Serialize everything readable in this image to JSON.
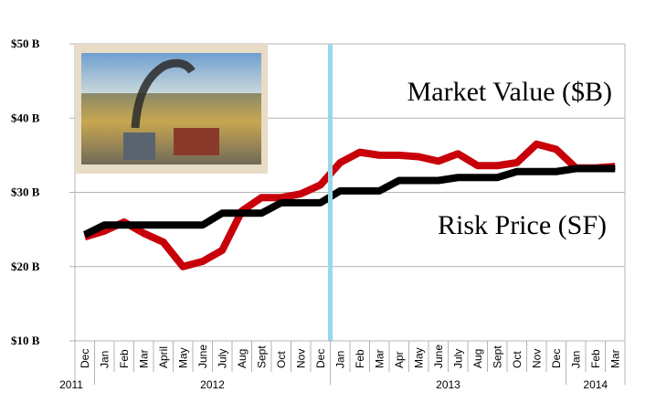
{
  "chart_data": {
    "type": "line",
    "title": "",
    "xlabel": "",
    "ylabel": "",
    "ylim": [
      10,
      50
    ],
    "y_ticks": [
      "$10 B",
      "$20 B",
      "$30 B",
      "$40 B",
      "$50 B"
    ],
    "y_tick_values": [
      10,
      20,
      30,
      40,
      50
    ],
    "categories": [
      "Dec",
      "Jan",
      "Feb",
      "Mar",
      "April",
      "May",
      "June",
      "July",
      "Aug",
      "Sept",
      "Oct",
      "Nov",
      "Dec",
      "Jan",
      "Feb",
      "Mar",
      "Apr",
      "May",
      "June",
      "July",
      "Aug",
      "Sept",
      "Oct",
      "Nov",
      "Dec",
      "Jan",
      "Feb",
      "Mar"
    ],
    "year_groups": [
      {
        "label": "2011",
        "start": 0,
        "count": 1
      },
      {
        "label": "2012",
        "start": 1,
        "count": 12
      },
      {
        "label": "2013",
        "start": 13,
        "count": 12
      },
      {
        "label": "2014",
        "start": 25,
        "count": 3
      }
    ],
    "series": [
      {
        "name": "Market Value ($B)",
        "color": "#c8000a",
        "values": [
          24.0,
          24.8,
          26.0,
          24.5,
          23.3,
          20.0,
          20.7,
          22.2,
          27.5,
          29.3,
          29.3,
          29.8,
          31.0,
          34.0,
          35.4,
          35.0,
          35.0,
          34.8,
          34.2,
          35.2,
          33.6,
          33.6,
          34.0,
          36.5,
          35.8,
          33.3,
          33.3,
          33.5
        ]
      },
      {
        "name": "Risk Price (SF)",
        "color": "#000000",
        "values": [
          24.3,
          25.6,
          25.6,
          25.6,
          25.6,
          25.6,
          25.6,
          27.2,
          27.2,
          27.2,
          28.6,
          28.6,
          28.6,
          30.2,
          30.2,
          30.2,
          31.6,
          31.6,
          31.6,
          32.0,
          32.0,
          32.0,
          32.8,
          32.8,
          32.8,
          33.2,
          33.2,
          33.2
        ]
      }
    ],
    "annotations": [
      "Market Value ($B)",
      "Risk Price (SF)"
    ],
    "marker_line": {
      "between": [
        "Dec 2012",
        "Jan 2013"
      ],
      "color": "#99d8e8"
    },
    "grid": true
  }
}
